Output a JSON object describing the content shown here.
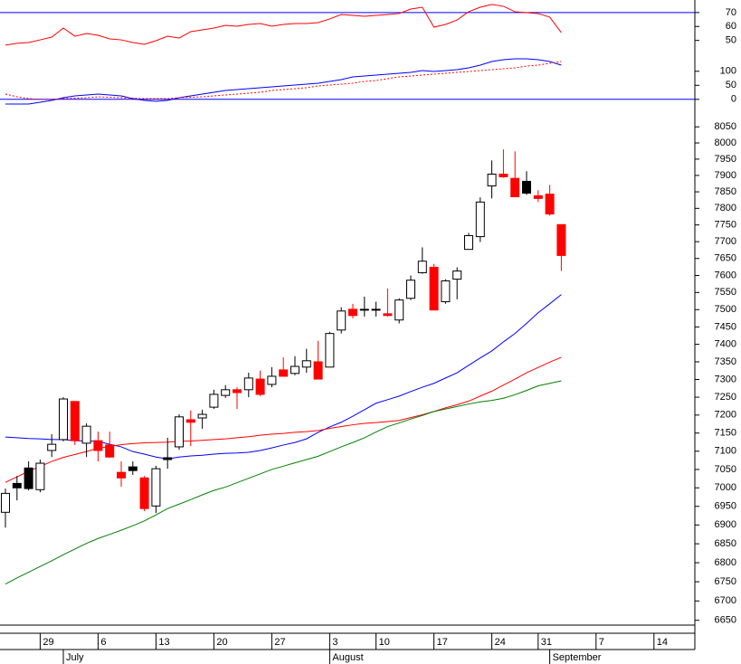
{
  "chart_data": [
    {
      "type": "line",
      "ylim": [
        42,
        79
      ],
      "yticks": [
        50,
        60,
        70
      ],
      "ref_lines": [
        70
      ],
      "ref_color": "#0000ff",
      "series": [
        {
          "color": "#ff0000",
          "values": [
            46.6,
            47.9,
            48.5,
            50.4,
            52.4,
            58.9,
            53,
            55,
            53.7,
            51.1,
            50.4,
            48.5,
            47.2,
            49.8,
            53,
            51.7,
            56.3,
            57.6,
            58.9,
            60.8,
            60.2,
            61.5,
            62.1,
            60.2,
            61.5,
            62.1,
            62.1,
            62.8,
            65.4,
            68.6,
            68,
            67.3,
            68,
            68.6,
            69.3,
            72.5,
            73.8,
            59.5,
            61.5,
            64.7,
            70.6,
            73.8,
            75.8,
            74.5,
            70.6,
            69.9,
            69.3,
            66.7,
            55.6,
            null,
            null,
            null,
            null,
            null,
            null,
            null,
            null,
            null,
            null,
            null
          ]
        }
      ]
    },
    {
      "type": "line",
      "ylim": [
        -20,
        150
      ],
      "yticks": [
        0,
        50,
        100
      ],
      "ref_lines": [
        0
      ],
      "ref_color": "#0000ff",
      "series": [
        {
          "color": "#0000ff",
          "values": [
            -16.8,
            -16.8,
            -16.8,
            -10.3,
            -3.9,
            5.8,
            12.3,
            15.5,
            18.7,
            15.5,
            12.3,
            2.6,
            -3.9,
            -7.1,
            -3.9,
            5.8,
            12.3,
            18.7,
            25.2,
            31.6,
            34.8,
            38.1,
            41.3,
            44.5,
            47.7,
            51,
            54.2,
            57.4,
            63.9,
            70.3,
            80,
            83.2,
            86.5,
            89.7,
            92.9,
            96.1,
            102.6,
            99.4,
            102.6,
            105.8,
            112.3,
            121.9,
            134.8,
            141.3,
            144.5,
            144.5,
            141.3,
            134.8,
            121.9,
            null,
            null,
            null,
            null,
            null,
            null,
            null,
            null,
            null,
            null,
            null
          ]
        },
        {
          "color": "#ff0000",
          "dash": true,
          "values": [
            18.7,
            9,
            2.6,
            -0.6,
            -0.6,
            2.6,
            4.2,
            5.8,
            9,
            7.4,
            5.8,
            4.2,
            2.6,
            2.6,
            2.6,
            5.8,
            7.4,
            9,
            12.3,
            15.5,
            18.7,
            21.9,
            25.2,
            31.6,
            34.8,
            38.1,
            41.3,
            47.7,
            51,
            54.2,
            57.4,
            63.9,
            67.1,
            73.5,
            80,
            83.2,
            86.5,
            89.7,
            92.9,
            96.1,
            99.4,
            102.6,
            105.8,
            109,
            112.3,
            118.7,
            121.9,
            128.4,
            134.8,
            null,
            null,
            null,
            null,
            null,
            null,
            null,
            null,
            null,
            null,
            null
          ]
        }
      ]
    },
    {
      "type": "candlestick",
      "log_scale": true,
      "ylim": [
        6640,
        8130
      ],
      "yticks": [
        8050,
        8000,
        7950,
        7900,
        7850,
        7800,
        7750,
        7700,
        7650,
        7600,
        7550,
        7500,
        7450,
        7400,
        7350,
        7300,
        7250,
        7200,
        7150,
        7100,
        7050,
        7000,
        6950,
        6900,
        6850,
        6800,
        6750,
        6700,
        6650
      ],
      "categories": [
        null,
        null,
        null,
        "29",
        null,
        null,
        null,
        null,
        "6",
        null,
        null,
        null,
        null,
        "13",
        null,
        null,
        null,
        null,
        "20",
        null,
        null,
        null,
        null,
        "27",
        null,
        null,
        null,
        null,
        "3",
        null,
        null,
        null,
        "10",
        null,
        null,
        null,
        null,
        "17",
        null,
        null,
        null,
        null,
        "24",
        null,
        null,
        null,
        "31",
        null,
        null,
        null,
        null,
        "7",
        null,
        null,
        null,
        null,
        "14",
        null,
        null,
        null
      ],
      "month_ticks": [
        {
          "value": 5,
          "label": "July"
        },
        {
          "value": 28,
          "label": "August"
        },
        {
          "value": 47,
          "label": "September"
        }
      ],
      "open": [
        6934,
        7012,
        7054,
        6995,
        7102,
        7132,
        7238,
        7122,
        7129,
        7117,
        7042,
        7057,
        7027,
        6951,
        7082,
        7112,
        7187,
        7192,
        7222,
        7255,
        7271,
        7271,
        7301,
        7286,
        7327,
        7317,
        7335,
        7350,
        7335,
        7441,
        7501,
        7499,
        7500,
        7488,
        7470,
        7533,
        7608,
        7624,
        7523,
        7589,
        7677,
        7715,
        7868,
        7904,
        7891,
        7882,
        7838,
        7843,
        7751,
        null,
        null,
        null,
        null,
        null,
        null,
        null,
        null,
        null,
        null,
        null
      ],
      "high": [
        6998,
        7032,
        7072,
        7077,
        7147,
        7250,
        7238,
        7177,
        7154,
        7154,
        7072,
        7072,
        7032,
        7060,
        7137,
        7202,
        7213,
        7215,
        7271,
        7284,
        7278,
        7319,
        7325,
        7335,
        7363,
        7366,
        7387,
        7410,
        7436,
        7507,
        7517,
        7538,
        7523,
        7562,
        7533,
        7600,
        7683,
        7634,
        7589,
        7624,
        7726,
        7833,
        7946,
        7980,
        7974,
        7913,
        7855,
        7871,
        7751,
        null,
        null,
        null,
        null,
        null,
        null,
        null,
        null,
        null,
        null,
        null
      ],
      "low": [
        6893,
        6966,
        6993,
        6988,
        7084,
        7127,
        7117,
        7084,
        7072,
        7082,
        7003,
        7035,
        6937,
        6932,
        7052,
        7104,
        7114,
        7162,
        7217,
        7248,
        7217,
        7250,
        7253,
        7278,
        7309,
        7312,
        7319,
        7301,
        7335,
        7431,
        7475,
        7480,
        7480,
        7480,
        7460,
        7528,
        7605,
        7499,
        7517,
        7530,
        7677,
        7699,
        7830,
        7893,
        7835,
        7841,
        7819,
        7778,
        7613,
        null,
        null,
        null,
        null,
        null,
        null,
        null,
        null,
        null,
        null,
        null
      ],
      "close": [
        6985,
        7000,
        6998,
        7067,
        7119,
        7245,
        7129,
        7169,
        7102,
        7084,
        7027,
        7047,
        6944,
        7052,
        7077,
        7195,
        7180,
        7202,
        7258,
        7271,
        7263,
        7304,
        7258,
        7309,
        7309,
        7337,
        7353,
        7301,
        7431,
        7496,
        7483,
        7501,
        7501,
        7483,
        7528,
        7586,
        7642,
        7499,
        7584,
        7613,
        7718,
        7819,
        7904,
        7896,
        7835,
        7846,
        7830,
        7783,
        7659,
        null,
        null,
        null,
        null,
        null,
        null,
        null,
        null,
        null,
        null,
        null
      ],
      "colors": [
        "#ffffff",
        "#000000",
        "#000000",
        "#ffffff",
        "#ffffff",
        "#ffffff",
        "#ff0000",
        "#ffffff",
        "#ff0000",
        "#ff0000",
        "#ff0000",
        "#000000",
        "#ff0000",
        "#ffffff",
        "#000000",
        "#ffffff",
        "#ff0000",
        "#ffffff",
        "#ffffff",
        "#ffffff",
        "#ff0000",
        "#ffffff",
        "#ff0000",
        "#ffffff",
        "#ff0000",
        "#ffffff",
        "#ffffff",
        "#ff0000",
        "#ffffff",
        "#ffffff",
        "#ff0000",
        "#ffffff",
        "#ffffff",
        "#ff0000",
        "#ffffff",
        "#ffffff",
        "#ffffff",
        "#ff0000",
        "#ffffff",
        "#ffffff",
        "#ffffff",
        "#ffffff",
        "#ffffff",
        "#ff0000",
        "#ff0000",
        "#000000",
        "#ff0000",
        "#ff0000",
        "#ff0000",
        null,
        null,
        null,
        null,
        null,
        null,
        null,
        null,
        null,
        null,
        null
      ],
      "overlays": [
        {
          "color": "#0000ff",
          "values": [
            7139,
            7137,
            7135,
            7134,
            7132,
            7132,
            7129,
            7128,
            7127,
            7119,
            7112,
            7099,
            7092,
            7084,
            7079,
            7084,
            7087,
            7089,
            7092,
            7094,
            7095,
            7097,
            7102,
            7109,
            7117,
            7124,
            7134,
            7152,
            7167,
            7180,
            7197,
            7215,
            7233,
            7243,
            7253,
            7266,
            7278,
            7289,
            7304,
            7319,
            7340,
            7361,
            7381,
            7407,
            7431,
            7460,
            7491,
            7517,
            7544,
            null,
            null,
            null,
            null,
            null,
            null,
            null,
            null,
            null,
            null,
            null
          ]
        },
        {
          "color": "#ff0000",
          "values": [
            7015,
            7030,
            7045,
            7058,
            7072,
            7083,
            7091,
            7099,
            7108,
            7113,
            7118,
            7121,
            7123,
            7124,
            7125,
            7127,
            7128,
            7130,
            7132,
            7134,
            7137,
            7140,
            7144,
            7147,
            7149,
            7152,
            7154,
            7157,
            7163,
            7168,
            7173,
            7177,
            7179,
            7182,
            7185,
            7193,
            7201,
            7210,
            7220,
            7229,
            7239,
            7253,
            7267,
            7284,
            7301,
            7319,
            7334,
            7349,
            7363,
            null,
            null,
            null,
            null,
            null,
            null,
            null,
            null,
            null,
            null,
            null
          ]
        },
        {
          "color": "#008000",
          "values": [
            6744,
            6760,
            6775,
            6790,
            6805,
            6821,
            6836,
            6851,
            6864,
            6875,
            6886,
            6898,
            6911,
            6927,
            6944,
            6956,
            6968,
            6981,
            6993,
            7002,
            7014,
            7026,
            7038,
            7050,
            7059,
            7068,
            7077,
            7086,
            7099,
            7112,
            7124,
            7137,
            7153,
            7168,
            7178,
            7189,
            7199,
            7210,
            7217,
            7224,
            7231,
            7237,
            7241,
            7247,
            7257,
            7269,
            7282,
            7289,
            7296,
            null,
            null,
            null,
            null,
            null,
            null,
            null,
            null,
            null,
            null,
            null
          ]
        }
      ]
    }
  ]
}
